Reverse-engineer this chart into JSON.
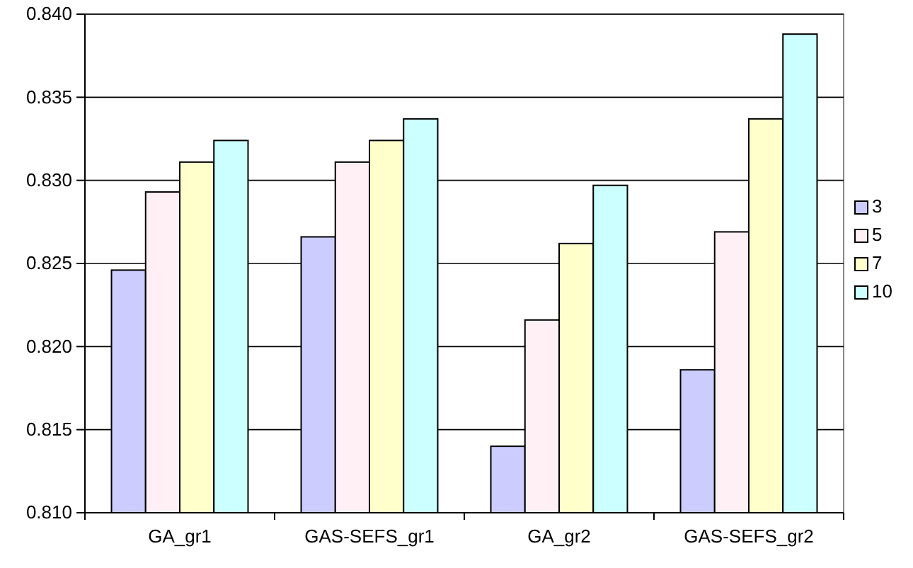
{
  "chart_data": {
    "type": "bar",
    "categories": [
      "GA_gr1",
      "GAS-SEFS_gr1",
      "GA_gr2",
      "GAS-SEFS_gr2"
    ],
    "series": [
      {
        "name": "3",
        "color": "#ccccff",
        "values": [
          0.8246,
          0.8266,
          0.814,
          0.8186
        ]
      },
      {
        "name": "5",
        "color": "#fff0f5",
        "values": [
          0.8293,
          0.8311,
          0.8216,
          0.8269
        ]
      },
      {
        "name": "7",
        "color": "#ffffcc",
        "values": [
          0.8311,
          0.8324,
          0.8262,
          0.8337
        ]
      },
      {
        "name": "10",
        "color": "#ccffff",
        "values": [
          0.8324,
          0.8337,
          0.8297,
          0.8388
        ]
      }
    ],
    "ylim": [
      0.81,
      0.84
    ],
    "yticks": [
      {
        "value": 0.81,
        "label": "0.810"
      },
      {
        "value": 0.815,
        "label": "0.815"
      },
      {
        "value": 0.82,
        "label": "0.820"
      },
      {
        "value": 0.825,
        "label": "0.825"
      },
      {
        "value": 0.83,
        "label": "0.830"
      },
      {
        "value": 0.835,
        "label": "0.835"
      },
      {
        "value": 0.84,
        "label": "0.840"
      }
    ],
    "grid": "y",
    "legend": "right"
  }
}
